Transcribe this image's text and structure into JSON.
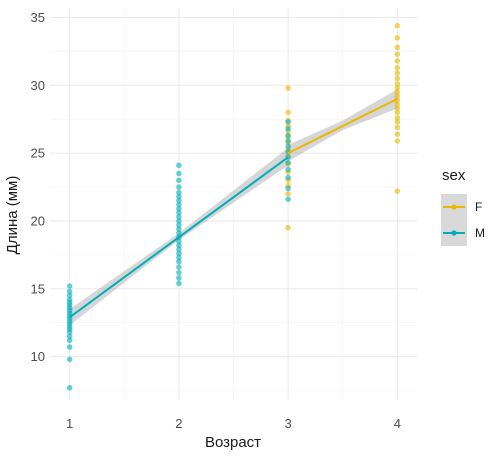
{
  "chart_data": {
    "type": "scatter",
    "xlabel": "Возраст",
    "ylabel": "Длина (мм)",
    "x_ticks": [
      1,
      2,
      3,
      4
    ],
    "y_ticks": [
      10,
      15,
      20,
      25,
      30,
      35
    ],
    "xlim": [
      0.82,
      4.18
    ],
    "ylim": [
      6.8,
      35.7
    ],
    "grid": true,
    "legend": {
      "title": "sex",
      "position": "right",
      "entries": [
        {
          "label": "F",
          "color": "#E7B800"
        },
        {
          "label": "M",
          "color": "#00AFBB"
        }
      ]
    },
    "series": [
      {
        "name": "F",
        "color": "#E7B800",
        "points": [
          [
            3,
            19.5
          ],
          [
            3,
            22.0
          ],
          [
            3,
            22.6
          ],
          [
            3,
            23.0
          ],
          [
            3,
            23.6
          ],
          [
            3,
            24.2
          ],
          [
            3,
            24.8
          ],
          [
            3,
            25.3
          ],
          [
            3,
            25.8
          ],
          [
            3,
            26.2
          ],
          [
            3,
            26.6
          ],
          [
            3,
            27.0
          ],
          [
            3,
            27.4
          ],
          [
            3,
            28.0
          ],
          [
            3,
            29.8
          ],
          [
            4,
            22.2
          ],
          [
            4,
            25.9
          ],
          [
            4,
            26.4
          ],
          [
            4,
            26.9
          ],
          [
            4,
            27.3
          ],
          [
            4,
            27.6
          ],
          [
            4,
            28.0
          ],
          [
            4,
            28.3
          ],
          [
            4,
            28.6
          ],
          [
            4,
            28.9
          ],
          [
            4,
            29.2
          ],
          [
            4,
            29.5
          ],
          [
            4,
            29.8
          ],
          [
            4,
            30.1
          ],
          [
            4,
            30.5
          ],
          [
            4,
            30.9
          ],
          [
            4,
            31.3
          ],
          [
            4,
            31.8
          ],
          [
            4,
            32.3
          ],
          [
            4,
            32.8
          ],
          [
            4,
            33.5
          ],
          [
            4,
            34.4
          ]
        ],
        "fit": {
          "x": [
            3,
            4
          ],
          "y": [
            25.0,
            29.0
          ]
        },
        "ci": {
          "x": [
            3,
            3.5,
            4
          ],
          "lower": [
            24.4,
            26.7,
            28.3
          ],
          "upper": [
            25.6,
            27.4,
            29.7
          ]
        }
      },
      {
        "name": "M",
        "color": "#00AFBB",
        "points": [
          [
            1,
            7.7
          ],
          [
            1,
            9.8
          ],
          [
            1,
            10.7
          ],
          [
            1,
            11.2
          ],
          [
            1,
            11.5
          ],
          [
            1,
            11.8
          ],
          [
            1,
            12.0
          ],
          [
            1,
            12.2
          ],
          [
            1,
            12.4
          ],
          [
            1,
            12.6
          ],
          [
            1,
            12.8
          ],
          [
            1,
            13.0
          ],
          [
            1,
            13.2
          ],
          [
            1,
            13.4
          ],
          [
            1,
            13.6
          ],
          [
            1,
            13.8
          ],
          [
            1,
            14.0
          ],
          [
            1,
            14.2
          ],
          [
            1,
            14.5
          ],
          [
            1,
            14.8
          ],
          [
            1,
            15.2
          ],
          [
            2,
            15.4
          ],
          [
            2,
            15.8
          ],
          [
            2,
            16.2
          ],
          [
            2,
            16.6
          ],
          [
            2,
            17.0
          ],
          [
            2,
            17.3
          ],
          [
            2,
            17.6
          ],
          [
            2,
            17.9
          ],
          [
            2,
            18.2
          ],
          [
            2,
            18.5
          ],
          [
            2,
            18.8
          ],
          [
            2,
            19.1
          ],
          [
            2,
            19.4
          ],
          [
            2,
            19.7
          ],
          [
            2,
            20.0
          ],
          [
            2,
            20.3
          ],
          [
            2,
            20.6
          ],
          [
            2,
            20.9
          ],
          [
            2,
            21.2
          ],
          [
            2,
            21.5
          ],
          [
            2,
            21.8
          ],
          [
            2,
            22.1
          ],
          [
            2,
            22.5
          ],
          [
            2,
            23.0
          ],
          [
            2,
            23.5
          ],
          [
            2,
            24.1
          ],
          [
            3,
            21.6
          ],
          [
            3,
            22.4
          ],
          [
            3,
            23.2
          ],
          [
            3,
            23.8
          ],
          [
            3,
            24.3
          ],
          [
            3,
            24.7
          ],
          [
            3,
            25.1
          ],
          [
            3,
            25.5
          ],
          [
            3,
            25.9
          ],
          [
            3,
            26.3
          ],
          [
            3,
            26.8
          ],
          [
            3,
            27.3
          ]
        ],
        "fit": {
          "x": [
            1,
            3
          ],
          "y": [
            12.9,
            24.7
          ]
        },
        "ci": {
          "x": [
            1,
            2,
            3
          ],
          "lower": [
            12.3,
            18.6,
            24.1
          ],
          "upper": [
            13.5,
            19.1,
            25.4
          ]
        }
      }
    ]
  }
}
